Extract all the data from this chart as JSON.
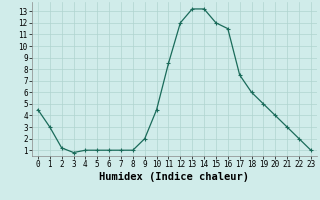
{
  "x": [
    0,
    1,
    2,
    3,
    4,
    5,
    6,
    7,
    8,
    9,
    10,
    11,
    12,
    13,
    14,
    15,
    16,
    17,
    18,
    19,
    20,
    21,
    22,
    23
  ],
  "y": [
    4.5,
    3.0,
    1.2,
    0.8,
    1.0,
    1.0,
    1.0,
    1.0,
    1.0,
    2.0,
    4.5,
    8.5,
    12.0,
    13.2,
    13.2,
    12.0,
    11.5,
    7.5,
    6.0,
    5.0,
    4.0,
    3.0,
    2.0,
    1.0
  ],
  "xlabel": "Humidex (Indice chaleur)",
  "yticks": [
    1,
    2,
    3,
    4,
    5,
    6,
    7,
    8,
    9,
    10,
    11,
    12,
    13
  ],
  "xticks": [
    0,
    1,
    2,
    3,
    4,
    5,
    6,
    7,
    8,
    9,
    10,
    11,
    12,
    13,
    14,
    15,
    16,
    17,
    18,
    19,
    20,
    21,
    22,
    23
  ],
  "line_color": "#1a6b5a",
  "marker": "+",
  "bg_color": "#d0ecea",
  "grid_color": "#afd4cf",
  "tick_label_fontsize": 5.5,
  "xlabel_fontsize": 7.5
}
